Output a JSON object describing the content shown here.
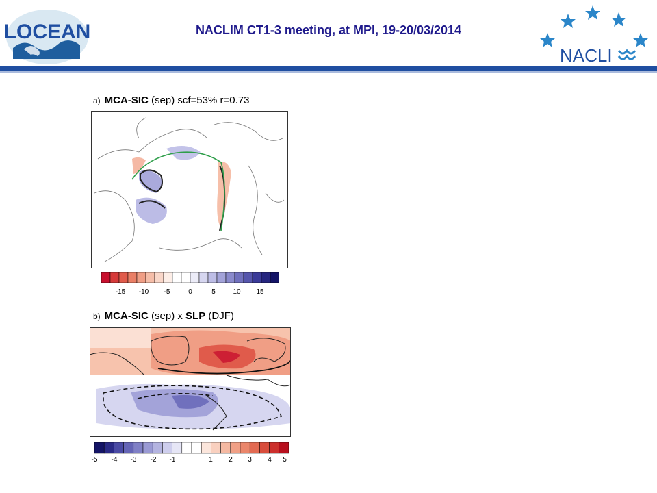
{
  "header": {
    "title": "NACLIM CT1-3 meeting, at MPI, 19-20/03/2014",
    "left_logo_text": "LOCEAN",
    "right_logo_text": "NACLI"
  },
  "panel_a": {
    "letter": "a)",
    "title_bold": "MCA-SIC",
    "title_rest": " (sep) scf=53% r=0.73",
    "colorbar_ticks": [
      "-15",
      "-10",
      "-5",
      "0",
      "5",
      "10",
      "15"
    ]
  },
  "panel_b": {
    "letter": "b)",
    "title_bold1": "MCA-SIC",
    "title_mid": " (sep) x ",
    "title_bold2": "SLP",
    "title_rest": " (DJF)",
    "colorbar_ticks": [
      "-5",
      "-4",
      "-3",
      "-2",
      "-1",
      "1",
      "2",
      "3",
      "4",
      "5"
    ]
  },
  "colors": {
    "brand_blue": "#1f4ea1",
    "title_navy": "#1f1a8c",
    "star_blue": "#2b86c9"
  }
}
